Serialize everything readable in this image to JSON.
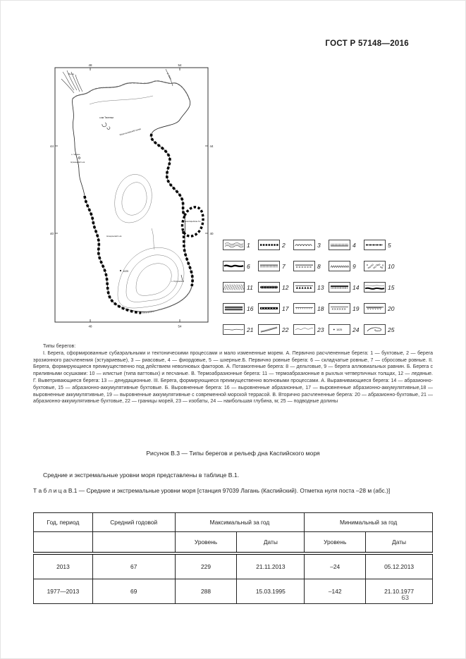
{
  "page": {
    "header": "ГОСТ Р 57148—2016",
    "number": "63"
  },
  "map": {
    "axis": {
      "lon_left": "48",
      "lon_right": "54",
      "lat_top": "44",
      "lat_bottom": "40"
    },
    "labels": {
      "volga": "Волга",
      "ural": "р. Урал",
      "tyuleni": "о-ва Тюленьи",
      "mangyshlak": "Мангышлакский залив",
      "chechen": "о. Чечень",
      "agrakhan": "Аграханский п-ов",
      "karabogaz": "залив Кара-Богаз-Гол",
      "apsheron": "Апшеронский п-ов",
      "ogurchinsky": "о. Огурчинский",
      "depth": "1025"
    }
  },
  "legend": {
    "items": [
      {
        "label": "1",
        "pattern": "waves3"
      },
      {
        "label": "2",
        "pattern": "sqchain"
      },
      {
        "label": "3",
        "pattern": "scallops"
      },
      {
        "label": "4",
        "pattern": "combup"
      },
      {
        "label": "5",
        "pattern": "dashdot"
      },
      {
        "label": "6",
        "pattern": "thickwave"
      },
      {
        "label": "7",
        "pattern": "combdown"
      },
      {
        "label": "8",
        "pattern": "dashbelow"
      },
      {
        "label": "9",
        "pattern": "wavelets"
      },
      {
        "label": "10",
        "pattern": "pebbles"
      },
      {
        "label": "11",
        "pattern": "diaghatch"
      },
      {
        "label": "12",
        "pattern": "thickx"
      },
      {
        "label": "13",
        "pattern": "trirow"
      },
      {
        "label": "14",
        "pattern": "combdark"
      },
      {
        "label": "15",
        "pattern": "waveover"
      },
      {
        "label": "16",
        "pattern": "dband"
      },
      {
        "label": "17",
        "pattern": "blackdots"
      },
      {
        "label": "18",
        "pattern": "tickbelow"
      },
      {
        "label": "19",
        "pattern": "xrow"
      },
      {
        "label": "20",
        "pattern": "tribelow"
      },
      {
        "label": "21",
        "pattern": "wavethin"
      },
      {
        "label": "22",
        "pattern": "diagband"
      },
      {
        "label": "23",
        "pattern": "isobath"
      },
      {
        "label": "24",
        "pattern": "depthmark"
      },
      {
        "label": "25",
        "pattern": "valley"
      }
    ]
  },
  "types_text": {
    "intro": "Типы берегов:",
    "body": "I. Берега, сформированные субаэральными и тектоническими процессами и мало измененные морем. А. Первично расчлененные берега: 1 — бухтовые, 2 — берега эрозионного расчленения (эстуариевые), 3 — риасовые, 4 — фиордовые, 5 — шхерные.Б. Первично ровные берега: 6 — складчатые ровные, 7 — сбросовые ровные. II. Берега, формирующиеся преимущественно под действием неволновых факторов. А. Потамогенные берега: 8 — дельтовые, 9 — берега аллювиальных равнин. Б. Берега с приливными осушками: 10 — илистые (типа ваттовых) и песчаные. В. Термоабразионные берега: 11 — термоабразионные в рыхлых четвертичных толщах, 12 — ледяные. Г. Выветривающиеся берега: 13 — денудационные. III. Берега, формирующиеся преимущественно волновыми процессами. А. Выравнивающиеся берега: 14 — абразионно-бухтовые, 15 — абразионно-аккумулятивные бухтовые. Б. Выровненные берега: 16 — выровненные абразионные, 17 — выровненные абразионно-аккумулятивные,18 — выровненные аккумулятивные, 19 — выровненные аккумулятивные с современной морской террасой. В. Вторично расчлененные берега: 20 — абразионно-бухтовые, 21 — абразионно-аккумулятивные бухтовые, 22 — границы морей, 23 — изобаты, 24 — наибольшая глубина, м; 25 — подводные долины"
  },
  "figure_caption": "Рисунок В.3 — Типы берегов и рельеф дна Каспийского моря",
  "paragraph": "Средние и экстремальные уровни моря представлены в таблице В.1.",
  "table": {
    "title": "Т а б л и ц а   В.1 — Средние и экстремальные уровни моря [станция 97039 Лагань (Каспийский). Отметка нуля поста –28 м (абс.)]",
    "headers": {
      "col_year": "Год, период",
      "col_mean": "Средний годовой",
      "col_max": "Максимальный за год",
      "col_min": "Минимальный за год",
      "sub_level": "Уровень",
      "sub_dates": "Даты"
    },
    "rows": [
      {
        "c0": "2013",
        "c1": "67",
        "c2": "229",
        "c3": "21.11.2013",
        "c4": "–24",
        "c5": "05.12.2013"
      },
      {
        "c0": "1977—2013",
        "c1": "69",
        "c2": "288",
        "c3": "15.03.1995",
        "c4": "–142",
        "c5": "21.10.1977"
      }
    ]
  }
}
